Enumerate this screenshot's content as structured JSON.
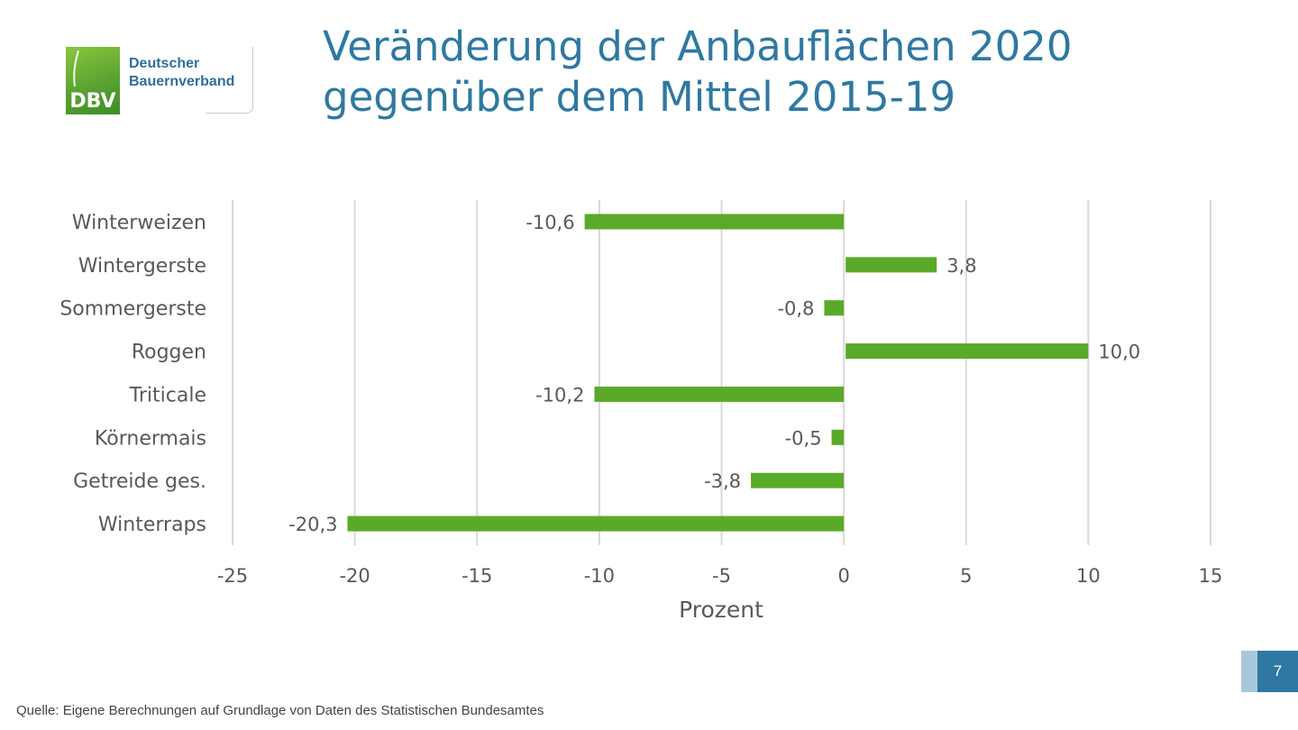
{
  "logo": {
    "abbr": "DBV",
    "line1": "Deutscher",
    "line2": "Bauernverband"
  },
  "title": "Veränderung der Anbauflächen 2020 gegenüber dem Mittel 2015-19",
  "chart_data": {
    "type": "bar",
    "orientation": "horizontal",
    "categories": [
      "Winterweizen",
      "Wintergerste",
      "Sommergerste",
      "Roggen",
      "Triticale",
      "Körnermais",
      "Getreide ges.",
      "Winterraps"
    ],
    "values": [
      -10.6,
      3.8,
      -0.8,
      10.0,
      -10.2,
      -0.5,
      -3.8,
      -20.3
    ],
    "value_labels": [
      "-10,6",
      "3,8",
      "-0,8",
      "10,0",
      "-10,2",
      "-0,5",
      "-3,8",
      "-20,3"
    ],
    "xlabel": "Prozent",
    "ylabel": "",
    "xlim": [
      -25,
      15
    ],
    "xticks": [
      -25,
      -20,
      -15,
      -10,
      -5,
      0,
      5,
      10,
      15
    ],
    "grid": true,
    "legend": "none",
    "bar_color": "#5aaa2a",
    "grid_color": "#d9d9d9",
    "text_color": "#595959"
  },
  "source": "Quelle: Eigene Berechnungen auf Grundlage von Daten des Statistischen Bundesamtes",
  "page_number": "7",
  "colors": {
    "title": "#2e79a2",
    "accent": "#2f78a3",
    "accent_light": "#a7c8db"
  }
}
